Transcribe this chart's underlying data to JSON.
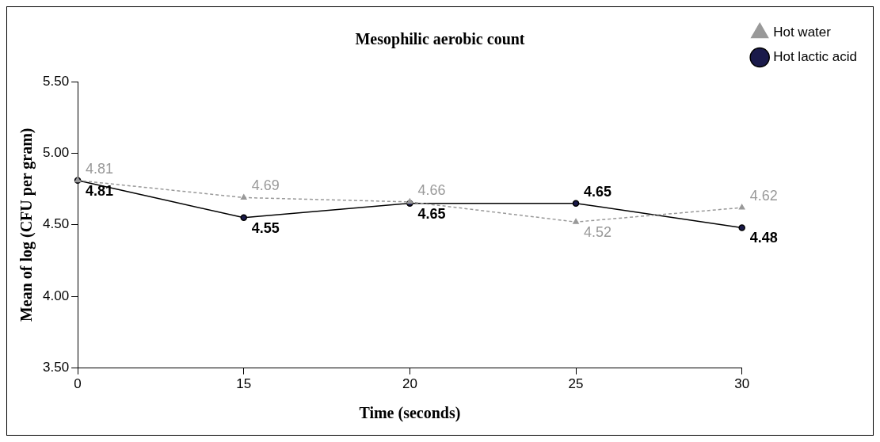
{
  "chart_data": {
    "type": "line",
    "title": "Mesophilic aerobic count",
    "xlabel": "Time (seconds)",
    "ylabel": "Mean of log (CFU per gram)",
    "categories": [
      "0",
      "15",
      "20",
      "25",
      "30"
    ],
    "series": [
      {
        "name": "Hot water",
        "color": "#999999",
        "values": [
          4.81,
          4.69,
          4.66,
          4.52,
          4.62
        ],
        "marker": "triangle",
        "line_style": "dashed"
      },
      {
        "name": "Hot lactic acid",
        "color": "#000000",
        "values": [
          4.81,
          4.55,
          4.65,
          4.65,
          4.48
        ],
        "marker": "circle",
        "line_style": "solid"
      }
    ],
    "ylim": [
      3.5,
      5.5
    ],
    "yticks": [
      {
        "value": 3.5,
        "label": "3.50"
      },
      {
        "value": 4,
        "label": "4.00"
      },
      {
        "value": 4.5,
        "label": "4.50"
      },
      {
        "value": 5,
        "label": "5.00"
      },
      {
        "value": 5.5,
        "label": "5.50"
      }
    ],
    "grid": false,
    "legend": "right",
    "data_labels": true
  }
}
